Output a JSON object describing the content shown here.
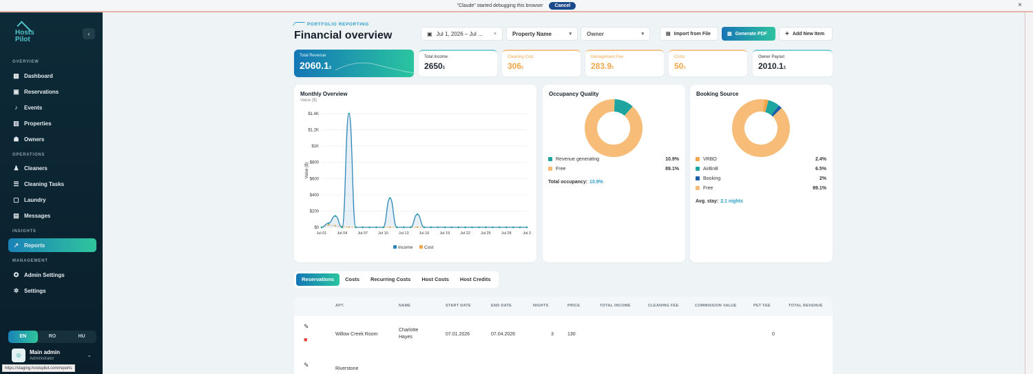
{
  "debug_banner": {
    "message": "\"Claude\" started debugging this browser",
    "cancel_label": "Cancel"
  },
  "sidebar": {
    "logo_text": "Hosts Pilot",
    "sections": {
      "overview": "OVERVIEW",
      "operations": "OPERATIONS",
      "insights": "INSIGHTS",
      "management": "MANAGEMENT"
    },
    "items": {
      "dashboard": "Dashboard",
      "reservations": "Reservations",
      "events": "Events",
      "properties": "Properties",
      "owners": "Owners",
      "cleaners": "Cleaners",
      "cleaning_tasks": "Cleaning Tasks",
      "laundry": "Laundry",
      "messages": "Messages",
      "reports": "Reports",
      "admin_settings": "Admin Settings",
      "settings": "Settings"
    },
    "languages": [
      "EN",
      "RO",
      "HU"
    ],
    "active_language": "EN",
    "user": {
      "initial": "◎",
      "name": "Main admin",
      "role": "Administrator"
    }
  },
  "status_url": "https://staging.hostspilot.com/reports",
  "header": {
    "eyebrow": "PORTFOLIO REPORTING",
    "title": "Financial overview",
    "date_range": "Jul 1, 2026 – Jul ...",
    "property_placeholder": "Property Name",
    "owner_placeholder": "Owner",
    "import_label": "Import from File",
    "pdf_label": "Generate PDF",
    "add_label": "Add New Item"
  },
  "kpis": {
    "total_revenue": {
      "label": "Total Revenue",
      "value": "2060.1",
      "unit": "$"
    },
    "total_income": {
      "label": "Total Income",
      "value": "2650",
      "unit": "$"
    },
    "cleaning_cost": {
      "label": "Cleaning Cost",
      "value": "306",
      "unit": "$",
      "color": "#f0a64a"
    },
    "management_fee": {
      "label": "Management Fee",
      "value": "283.9",
      "unit": "$",
      "color": "#f0a64a"
    },
    "costs": {
      "label": "Costs",
      "value": "50",
      "unit": "$",
      "color": "#f0a64a"
    },
    "owner_payout": {
      "label": "Owner Payout",
      "value": "2010.1",
      "unit": "$"
    }
  },
  "chart_data": [
    {
      "type": "line",
      "title": "Monthly Overview",
      "subtitle": "Value ($)",
      "ylabel": "Value ($)",
      "ylim": [
        0,
        1400
      ],
      "yticks": [
        "$0",
        "$200",
        "$400",
        "$600",
        "$800",
        "$1K",
        "$1.2K",
        "$1.4K"
      ],
      "ytick_values": [
        0,
        200,
        400,
        600,
        800,
        1000,
        1200,
        1400
      ],
      "xtick_labels": [
        "Jul 01",
        "Jul 04",
        "Jul 07",
        "Jul 10",
        "Jul 13",
        "Jul 16",
        "Jul 19",
        "Jul 22",
        "Jul 25",
        "Jul 28",
        "Jul 3"
      ],
      "legend_position": "bottom",
      "series": [
        {
          "name": "Income",
          "color": "#2f86b8",
          "values": [
            0,
            50,
            140,
            0,
            1400,
            0,
            0,
            0,
            0,
            0,
            360,
            0,
            0,
            0,
            160,
            0,
            0,
            0,
            0,
            0,
            0,
            0,
            0,
            0,
            0,
            0,
            0,
            0,
            0,
            0,
            0
          ]
        },
        {
          "name": "Cost",
          "color": "#f0a64a",
          "values": [
            0,
            30,
            20,
            10,
            0,
            0,
            0,
            0,
            0,
            0,
            0,
            0,
            0,
            0,
            0,
            0,
            0,
            0,
            0,
            0,
            0,
            0,
            0,
            0,
            0,
            0,
            0,
            0,
            0,
            0,
            0
          ]
        }
      ]
    },
    {
      "type": "pie",
      "title": "Occupancy Quality",
      "slices": [
        {
          "name": "Revenue generating",
          "value": 10.9,
          "label": "10.9%",
          "color": "#1ea5a0"
        },
        {
          "name": "Free",
          "value": 89.1,
          "label": "89.1%",
          "color": "#f7bd78"
        }
      ]
    },
    {
      "type": "pie",
      "title": "Booking Source",
      "slices": [
        {
          "name": "VRBO",
          "value": 2.4,
          "label": "2.4%",
          "color": "#f0a64a"
        },
        {
          "name": "AirBnB",
          "value": 6.5,
          "label": "6.5%",
          "color": "#1ea5a0"
        },
        {
          "name": "Booking",
          "value": 2,
          "label": "2%",
          "color": "#1d5fa8"
        },
        {
          "name": "Free",
          "value": 89.1,
          "label": "89.1%",
          "color": "#f7bd78"
        }
      ]
    }
  ],
  "occupancy": {
    "total_label": "Total occupancy:",
    "total_value": "10.9%"
  },
  "booking": {
    "avg_label": "Avg. stay:",
    "avg_value": "2.1 nights"
  },
  "tabs": [
    "Reservations",
    "Costs",
    "Recurring Costs",
    "Host Costs",
    "Host Credits"
  ],
  "table": {
    "columns": [
      "APT.",
      "NAME",
      "START DATE",
      "END DATE",
      "NIGHTS",
      "PRICE",
      "TOTAL INCOME",
      "CLEANING FEE",
      "COMMISSION VALUE",
      "PET FEE",
      "TOTAL REVENUE"
    ],
    "rows": [
      {
        "apt": "Willow Creek Room",
        "name": "Charlotte Hayes",
        "start": "07.01.2026",
        "end": "07.04.2026",
        "nights": "3",
        "price": "130",
        "pet_fee": "0"
      },
      {
        "apt": "Riverstone",
        "name": "",
        "start": "",
        "end": "",
        "nights": "",
        "price": "",
        "pet_fee": ""
      }
    ]
  },
  "colors": {
    "accent_start": "#1476b6",
    "accent_end": "#2ac5a0",
    "sidebar_bg": "#0d2a38"
  }
}
